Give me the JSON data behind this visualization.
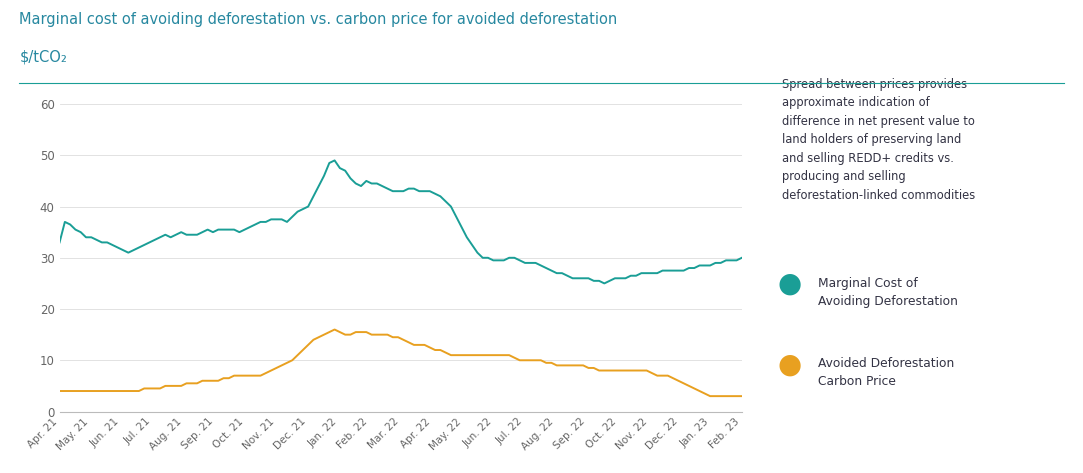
{
  "title": "Marginal cost of avoiding deforestation vs. carbon price for avoided deforestation",
  "subtitle": "$/tCO₂",
  "title_color": "#2788a0",
  "subtitle_color": "#2788a0",
  "teal_color": "#1a9e96",
  "gold_color": "#e8a020",
  "background_color": "#ffffff",
  "annotation_box_color": "#ddeaf5",
  "annotation_text": "Spread between prices provides\napproximate indication of\ndifference in net present value to\nland holders of preserving land\nand selling REDD+ credits vs.\nproducing and selling\ndeforestation-linked commodities",
  "legend1": "Marginal Cost of\nAvoiding Deforestation",
  "legend2": "Avoided Deforestation\nCarbon Price",
  "ylim": [
    0,
    60
  ],
  "yticks": [
    0,
    10,
    20,
    30,
    40,
    50,
    60
  ],
  "x_labels": [
    "Apr. 21",
    "May. 21",
    "Jun. 21",
    "Jul. 21",
    "Aug. 21",
    "Sep. 21",
    "Oct. 21",
    "Nov. 21",
    "Dec. 21",
    "Jan. 22",
    "Feb. 22",
    "Mar. 22",
    "Apr. 22",
    "May. 22",
    "Jun. 22",
    "Jul. 22",
    "Aug. 22",
    "Sep. 22",
    "Oct. 22",
    "Nov. 22",
    "Dec. 22",
    "Jan. 23",
    "Feb. 23"
  ],
  "teal_values": [
    33.0,
    37.0,
    36.5,
    35.5,
    35.0,
    34.0,
    34.0,
    33.5,
    33.0,
    33.0,
    32.5,
    32.0,
    31.5,
    31.0,
    31.5,
    32.0,
    32.5,
    33.0,
    33.5,
    34.0,
    34.5,
    34.0,
    34.5,
    35.0,
    34.5,
    34.5,
    34.5,
    35.0,
    35.5,
    35.0,
    35.5,
    35.5,
    35.5,
    35.5,
    35.0,
    35.5,
    36.0,
    36.5,
    37.0,
    37.0,
    37.5,
    37.5,
    37.5,
    37.0,
    38.0,
    39.0,
    39.5,
    40.0,
    42.0,
    44.0,
    46.0,
    48.5,
    49.0,
    47.5,
    47.0,
    45.5,
    44.5,
    44.0,
    45.0,
    44.5,
    44.5,
    44.0,
    43.5,
    43.0,
    43.0,
    43.0,
    43.5,
    43.5,
    43.0,
    43.0,
    43.0,
    42.5,
    42.0,
    41.0,
    40.0,
    38.0,
    36.0,
    34.0,
    32.5,
    31.0,
    30.0,
    30.0,
    29.5,
    29.5,
    29.5,
    30.0,
    30.0,
    29.5,
    29.0,
    29.0,
    29.0,
    28.5,
    28.0,
    27.5,
    27.0,
    27.0,
    26.5,
    26.0,
    26.0,
    26.0,
    26.0,
    25.5,
    25.5,
    25.0,
    25.5,
    26.0,
    26.0,
    26.0,
    26.5,
    26.5,
    27.0,
    27.0,
    27.0,
    27.0,
    27.5,
    27.5,
    27.5,
    27.5,
    27.5,
    28.0,
    28.0,
    28.5,
    28.5,
    28.5,
    29.0,
    29.0,
    29.5,
    29.5,
    29.5,
    30.0
  ],
  "gold_values": [
    4.0,
    4.0,
    4.0,
    4.0,
    4.0,
    4.0,
    4.0,
    4.0,
    4.0,
    4.0,
    4.0,
    4.0,
    4.0,
    4.0,
    4.0,
    4.0,
    4.5,
    4.5,
    4.5,
    4.5,
    5.0,
    5.0,
    5.0,
    5.0,
    5.5,
    5.5,
    5.5,
    6.0,
    6.0,
    6.0,
    6.0,
    6.5,
    6.5,
    7.0,
    7.0,
    7.0,
    7.0,
    7.0,
    7.0,
    7.5,
    8.0,
    8.5,
    9.0,
    9.5,
    10.0,
    11.0,
    12.0,
    13.0,
    14.0,
    14.5,
    15.0,
    15.5,
    16.0,
    15.5,
    15.0,
    15.0,
    15.5,
    15.5,
    15.5,
    15.0,
    15.0,
    15.0,
    15.0,
    14.5,
    14.5,
    14.0,
    13.5,
    13.0,
    13.0,
    13.0,
    12.5,
    12.0,
    12.0,
    11.5,
    11.0,
    11.0,
    11.0,
    11.0,
    11.0,
    11.0,
    11.0,
    11.0,
    11.0,
    11.0,
    11.0,
    11.0,
    10.5,
    10.0,
    10.0,
    10.0,
    10.0,
    10.0,
    9.5,
    9.5,
    9.0,
    9.0,
    9.0,
    9.0,
    9.0,
    9.0,
    8.5,
    8.5,
    8.0,
    8.0,
    8.0,
    8.0,
    8.0,
    8.0,
    8.0,
    8.0,
    8.0,
    8.0,
    7.5,
    7.0,
    7.0,
    7.0,
    6.5,
    6.0,
    5.5,
    5.0,
    4.5,
    4.0,
    3.5,
    3.0,
    3.0,
    3.0,
    3.0,
    3.0,
    3.0,
    3.0
  ]
}
